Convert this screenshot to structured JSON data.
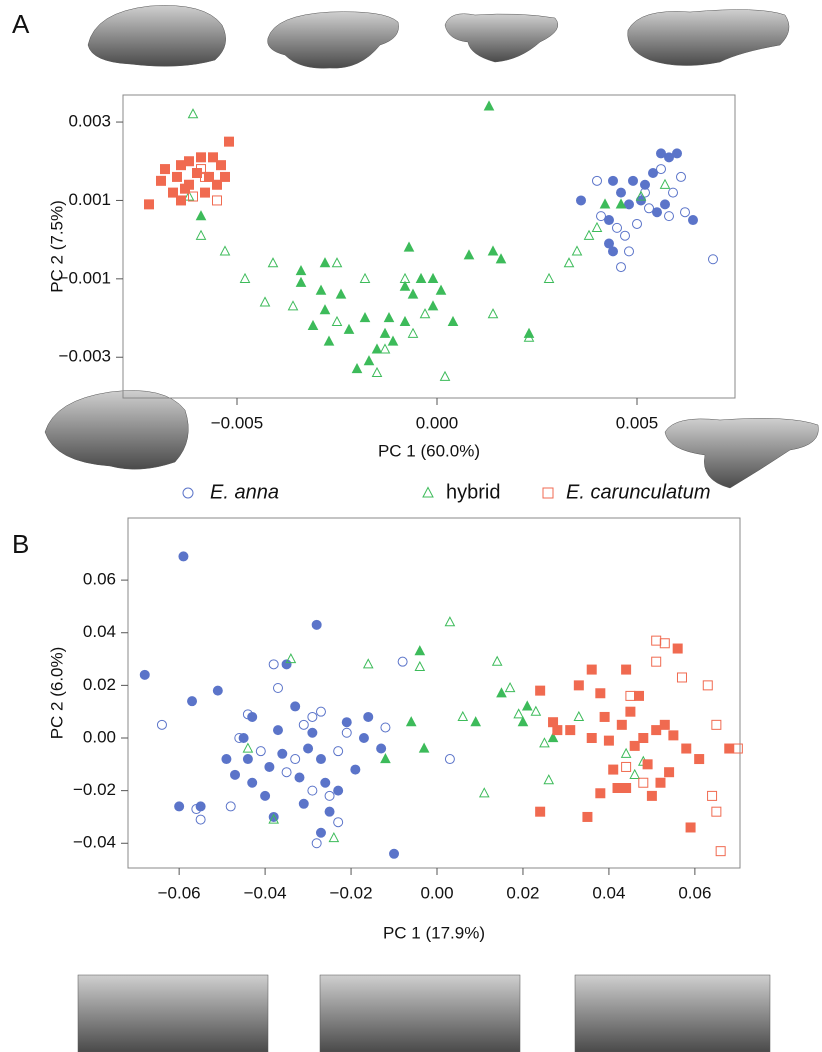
{
  "chart_data": [
    {
      "type": "scatter",
      "panel": "A",
      "xlabel": "PC 1 (60.0%)",
      "ylabel": "PC 2 (7.5%)",
      "xlim": [
        -0.00785,
        0.00745
      ],
      "ylim": [
        -0.00404,
        0.00369
      ],
      "xticks": [
        {
          "value": -0.005,
          "label": "−0.005"
        },
        {
          "value": 0,
          "label": "0.000"
        },
        0.005
      ],
      "yticks": [
        0.003,
        0.001,
        {
          "value": -0.001,
          "label": "−0.001"
        },
        {
          "value": -0.003,
          "label": "−0.003"
        }
      ],
      "legend": true,
      "series": [
        {
          "name": "E. anna",
          "italic": true,
          "color": "#5b74c9",
          "marker": "circle",
          "x": [
            0.0036,
            0.0043,
            0.0044,
            0.0046,
            0.0048,
            0.0049,
            0.0051,
            0.0052,
            0.0054,
            0.0056,
            0.0058,
            0.006,
            0.0055,
            0.0057,
            0.0064,
            0.0043,
            0.0044,
            0.004,
            0.0041,
            0.0045,
            0.0047,
            0.005,
            0.0053,
            0.0056,
            0.0058,
            0.0059,
            0.0061,
            0.0062,
            0.0069,
            0.0048,
            0.0046,
            0.0052
          ],
          "values": [
            0.001,
            0.0005,
            0.0015,
            0.0012,
            0.0009,
            0.0015,
            0.001,
            0.0014,
            0.0017,
            0.0022,
            0.0021,
            0.0022,
            0.0007,
            0.0009,
            0.0005,
            -0.0001,
            -0.0003,
            0.0015,
            0.0006,
            0.0003,
            0.0001,
            0.0004,
            0.0008,
            0.0018,
            0.0006,
            0.0012,
            0.0016,
            0.0007,
            -0.0005,
            -0.0003,
            -0.0007,
            0.0012
          ],
          "filled": [
            true,
            true,
            true,
            true,
            true,
            true,
            true,
            true,
            true,
            true,
            true,
            true,
            true,
            true,
            true,
            true,
            true,
            false,
            false,
            false,
            false,
            false,
            false,
            false,
            false,
            false,
            false,
            false,
            false,
            false,
            false,
            false
          ]
        },
        {
          "name": "hybrid",
          "italic": false,
          "color": "#3dbb5a",
          "marker": "triangle",
          "x": [
            0.0013,
            -0.0059,
            -0.0034,
            -0.0034,
            -0.0028,
            -0.0029,
            -0.0028,
            -0.0031,
            -0.0027,
            -0.0024,
            -0.0022,
            -0.002,
            -0.0017,
            -0.0015,
            -0.0018,
            -0.0008,
            -0.0006,
            -0.0004,
            -0.0001,
            0.0001,
            -0.0001,
            -0.0013,
            -0.0011,
            -0.0008,
            0.0004,
            0.0008,
            0.0014,
            0.0016,
            0.0023,
            0.0042,
            0.0046,
            -0.0007,
            -0.0012,
            -0.0061,
            -0.0062,
            -0.0059,
            -0.0053,
            -0.0048,
            -0.0043,
            -0.0041,
            -0.0036,
            -0.0025,
            -0.0025,
            -0.0018,
            -0.0008,
            -0.0006,
            -0.0015,
            0.0002,
            0.0014,
            0.0023,
            0.0028,
            0.0033,
            0.0035,
            0.0038,
            0.004,
            0.0051,
            0.0057,
            -0.0003,
            -0.0013
          ],
          "values": [
            0.0034,
            0.0006,
            -0.0008,
            -0.0011,
            -0.0006,
            -0.0013,
            -0.0018,
            -0.0022,
            -0.0026,
            -0.0014,
            -0.0023,
            -0.0033,
            -0.0031,
            -0.0028,
            -0.002,
            -0.0012,
            -0.0014,
            -0.001,
            -0.001,
            -0.0013,
            -0.0017,
            -0.0024,
            -0.0026,
            -0.0021,
            -0.0021,
            -0.0004,
            -0.0003,
            -0.0005,
            -0.0024,
            0.0009,
            0.0009,
            -0.0002,
            -0.002,
            0.0032,
            0.0011,
            0.0001,
            -0.0003,
            -0.001,
            -0.0016,
            -0.0006,
            -0.0017,
            -0.0006,
            -0.0021,
            -0.001,
            -0.001,
            -0.0024,
            -0.0034,
            -0.0035,
            -0.0019,
            -0.0025,
            -0.001,
            -0.0006,
            -0.0003,
            0.0001,
            0.0003,
            0.0011,
            0.0014,
            -0.0019,
            -0.0028
          ],
          "filled": [
            true,
            true,
            true,
            true,
            true,
            true,
            true,
            true,
            true,
            true,
            true,
            true,
            true,
            true,
            true,
            true,
            true,
            true,
            true,
            true,
            true,
            true,
            true,
            true,
            true,
            true,
            true,
            true,
            true,
            true,
            true,
            true,
            true,
            false,
            false,
            false,
            false,
            false,
            false,
            false,
            false,
            false,
            false,
            false,
            false,
            false,
            false,
            false,
            false,
            false,
            false,
            false,
            false,
            false,
            false,
            false,
            false,
            false,
            false
          ]
        },
        {
          "name": "E. carunculatum",
          "italic": true,
          "color": "#f06a50",
          "marker": "square",
          "x": [
            -0.0072,
            -0.0069,
            -0.0068,
            -0.0066,
            -0.0065,
            -0.0064,
            -0.0064,
            -0.0062,
            -0.0062,
            -0.006,
            -0.0059,
            -0.0058,
            -0.0057,
            -0.0056,
            -0.0055,
            -0.0054,
            -0.0053,
            -0.0052,
            -0.0063,
            -0.0061,
            -0.0059,
            -0.0058,
            -0.0055
          ],
          "values": [
            0.0009,
            0.0015,
            0.0018,
            0.0012,
            0.0016,
            0.0019,
            0.001,
            0.0014,
            0.002,
            0.0017,
            0.0021,
            0.0012,
            0.0016,
            0.0021,
            0.0014,
            0.0019,
            0.0016,
            0.0025,
            0.0013,
            0.0011,
            0.0018,
            0.0016,
            0.001
          ],
          "filled": [
            true,
            true,
            true,
            true,
            true,
            true,
            true,
            true,
            true,
            true,
            true,
            true,
            true,
            true,
            true,
            true,
            true,
            true,
            true,
            false,
            false,
            false,
            false
          ]
        }
      ]
    },
    {
      "type": "scatter",
      "panel": "B",
      "xlabel": "PC 1 (17.9%)",
      "ylabel": "PC 2 (6.0%)",
      "xlim": [
        -0.0719,
        0.0705
      ],
      "ylim": [
        -0.0494,
        0.0836
      ],
      "xticks": [
        {
          "value": -0.06,
          "label": "−0.06"
        },
        {
          "value": -0.04,
          "label": "−0.04"
        },
        {
          "value": -0.02,
          "label": "−0.02"
        },
        {
          "value": 0,
          "label": "0.00"
        },
        0.02,
        0.04,
        0.06
      ],
      "yticks": [
        0.06,
        0.04,
        0.02,
        {
          "value": 0,
          "label": "0.00"
        },
        {
          "value": -0.02,
          "label": "−0.02"
        },
        {
          "value": -0.04,
          "label": "−0.04"
        }
      ],
      "legend": false,
      "series": [
        {
          "name": "E. anna",
          "italic": true,
          "color": "#5b74c9",
          "marker": "circle",
          "x": [
            -0.068,
            -0.059,
            -0.06,
            -0.057,
            -0.051,
            -0.049,
            -0.047,
            -0.045,
            -0.044,
            -0.043,
            -0.043,
            -0.04,
            -0.039,
            -0.037,
            -0.036,
            -0.035,
            -0.033,
            -0.032,
            -0.031,
            -0.03,
            -0.029,
            -0.028,
            -0.027,
            -0.026,
            -0.025,
            -0.023,
            -0.021,
            -0.019,
            -0.017,
            -0.016,
            -0.013,
            -0.01,
            -0.027,
            -0.038,
            -0.055,
            -0.064,
            -0.056,
            -0.055,
            -0.048,
            -0.046,
            -0.044,
            -0.041,
            -0.038,
            -0.037,
            -0.035,
            -0.033,
            -0.031,
            -0.029,
            -0.027,
            -0.025,
            -0.023,
            -0.023,
            -0.021,
            -0.028,
            -0.029,
            -0.008,
            0.003,
            -0.012
          ],
          "values": [
            0.024,
            0.069,
            -0.026,
            0.014,
            0.018,
            -0.008,
            -0.014,
            0,
            -0.008,
            -0.017,
            0.008,
            -0.022,
            -0.011,
            0.003,
            -0.006,
            0.028,
            0.012,
            -0.015,
            -0.025,
            -0.004,
            0.002,
            0.043,
            -0.008,
            -0.017,
            -0.028,
            -0.02,
            0.006,
            -0.012,
            0,
            0.008,
            -0.004,
            -0.044,
            -0.036,
            -0.03,
            -0.026,
            0.005,
            -0.027,
            -0.031,
            -0.026,
            0,
            0.009,
            -0.005,
            0.028,
            0.019,
            -0.013,
            -0.008,
            0.005,
            0.008,
            0.01,
            -0.022,
            -0.032,
            -0.005,
            0.002,
            -0.04,
            -0.02,
            0.029,
            -0.008,
            0.004
          ],
          "filled": [
            true,
            true,
            true,
            true,
            true,
            true,
            true,
            true,
            true,
            true,
            true,
            true,
            true,
            true,
            true,
            true,
            true,
            true,
            true,
            true,
            true,
            true,
            true,
            true,
            true,
            true,
            true,
            true,
            true,
            true,
            true,
            true,
            true,
            true,
            true,
            false,
            false,
            false,
            false,
            false,
            false,
            false,
            false,
            false,
            false,
            false,
            false,
            false,
            false,
            false,
            false,
            false,
            false,
            false,
            false,
            false,
            false,
            false
          ]
        },
        {
          "name": "hybrid",
          "italic": false,
          "color": "#3dbb5a",
          "marker": "triangle",
          "x": [
            -0.004,
            -0.012,
            -0.006,
            -0.003,
            0.009,
            0.015,
            0.02,
            0.021,
            0.027,
            -0.044,
            -0.038,
            -0.034,
            -0.024,
            -0.016,
            -0.004,
            0.003,
            0.006,
            0.011,
            0.014,
            0.017,
            0.019,
            0.023,
            0.025,
            0.026,
            0.033,
            0.044,
            0.046,
            0.048
          ],
          "values": [
            0.033,
            -0.008,
            0.006,
            -0.004,
            0.006,
            0.017,
            0.006,
            0.012,
            0,
            -0.004,
            -0.031,
            0.03,
            -0.038,
            0.028,
            0.027,
            0.044,
            0.008,
            -0.021,
            0.029,
            0.019,
            0.009,
            0.01,
            -0.002,
            -0.016,
            0.008,
            -0.006,
            -0.014,
            -0.009
          ],
          "filled": [
            true,
            true,
            true,
            true,
            true,
            true,
            true,
            true,
            true,
            false,
            false,
            false,
            false,
            false,
            false,
            false,
            false,
            false,
            false,
            false,
            false,
            false,
            false,
            false,
            false,
            false,
            false,
            false
          ]
        },
        {
          "name": "E. carunculatum",
          "italic": true,
          "color": "#f06a50",
          "marker": "square",
          "x": [
            0.024,
            0.024,
            0.027,
            0.028,
            0.031,
            0.033,
            0.035,
            0.036,
            0.036,
            0.038,
            0.039,
            0.04,
            0.041,
            0.042,
            0.043,
            0.044,
            0.045,
            0.046,
            0.047,
            0.048,
            0.049,
            0.05,
            0.051,
            0.052,
            0.053,
            0.054,
            0.055,
            0.056,
            0.058,
            0.059,
            0.061,
            0.068,
            0.038,
            0.044,
            0.045,
            0.048,
            0.051,
            0.051,
            0.053,
            0.057,
            0.063,
            0.064,
            0.065,
            0.065,
            0.066,
            0.07,
            0.044
          ],
          "values": [
            0.018,
            -0.028,
            0.006,
            0.003,
            0.003,
            0.02,
            -0.03,
            0.026,
            0,
            0.017,
            0.008,
            -0.001,
            -0.012,
            -0.019,
            0.005,
            0.026,
            0.01,
            -0.003,
            0.016,
            0,
            -0.01,
            -0.022,
            0.003,
            -0.017,
            0.005,
            -0.013,
            0.001,
            0.034,
            -0.004,
            -0.034,
            -0.008,
            -0.004,
            -0.021,
            -0.019,
            0.016,
            -0.017,
            0.029,
            0.037,
            0.036,
            0.023,
            0.02,
            -0.022,
            0.005,
            -0.028,
            -0.043,
            -0.004,
            -0.011
          ],
          "filled": [
            true,
            true,
            true,
            true,
            true,
            true,
            true,
            true,
            true,
            true,
            true,
            true,
            true,
            true,
            true,
            true,
            true,
            true,
            true,
            true,
            true,
            true,
            true,
            true,
            true,
            true,
            true,
            true,
            true,
            true,
            true,
            true,
            true,
            true,
            false,
            false,
            false,
            false,
            false,
            false,
            false,
            false,
            false,
            false,
            false,
            false,
            false
          ]
        }
      ]
    }
  ]
}
